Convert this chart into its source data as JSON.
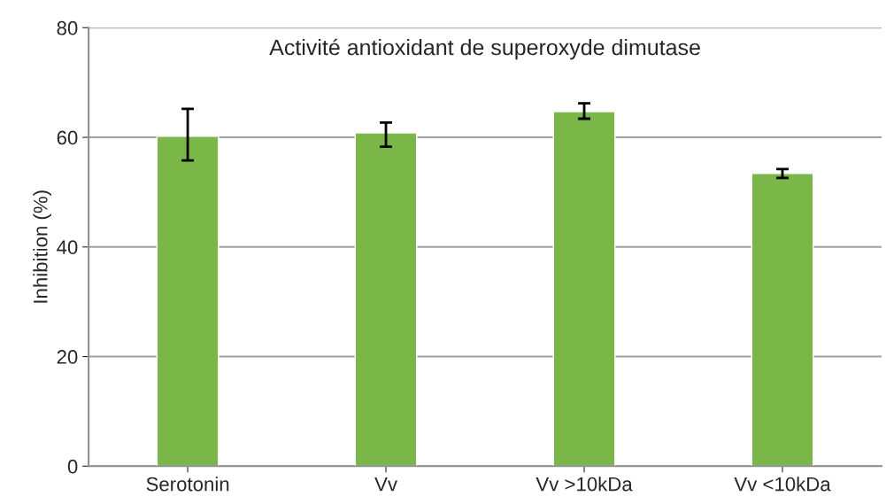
{
  "chart_data": {
    "type": "bar",
    "title": "Activité antioxidant de superoxyde dimutase",
    "ylabel": "Inhibition (%)",
    "categories": [
      "Serotonin",
      "Vv",
      "Vv >10kDa",
      "Vv <10kDa"
    ],
    "values": [
      60.2,
      60.8,
      64.7,
      53.4
    ],
    "errors": [
      [
        55.8,
        65.2
      ],
      [
        58.3,
        62.7
      ],
      [
        63.4,
        66.2
      ],
      [
        52.6,
        54.2
      ]
    ],
    "color": "#7ab648",
    "ylim": [
      0,
      80
    ],
    "yticks": [
      0,
      20,
      40,
      60,
      80
    ],
    "grid": "y"
  }
}
